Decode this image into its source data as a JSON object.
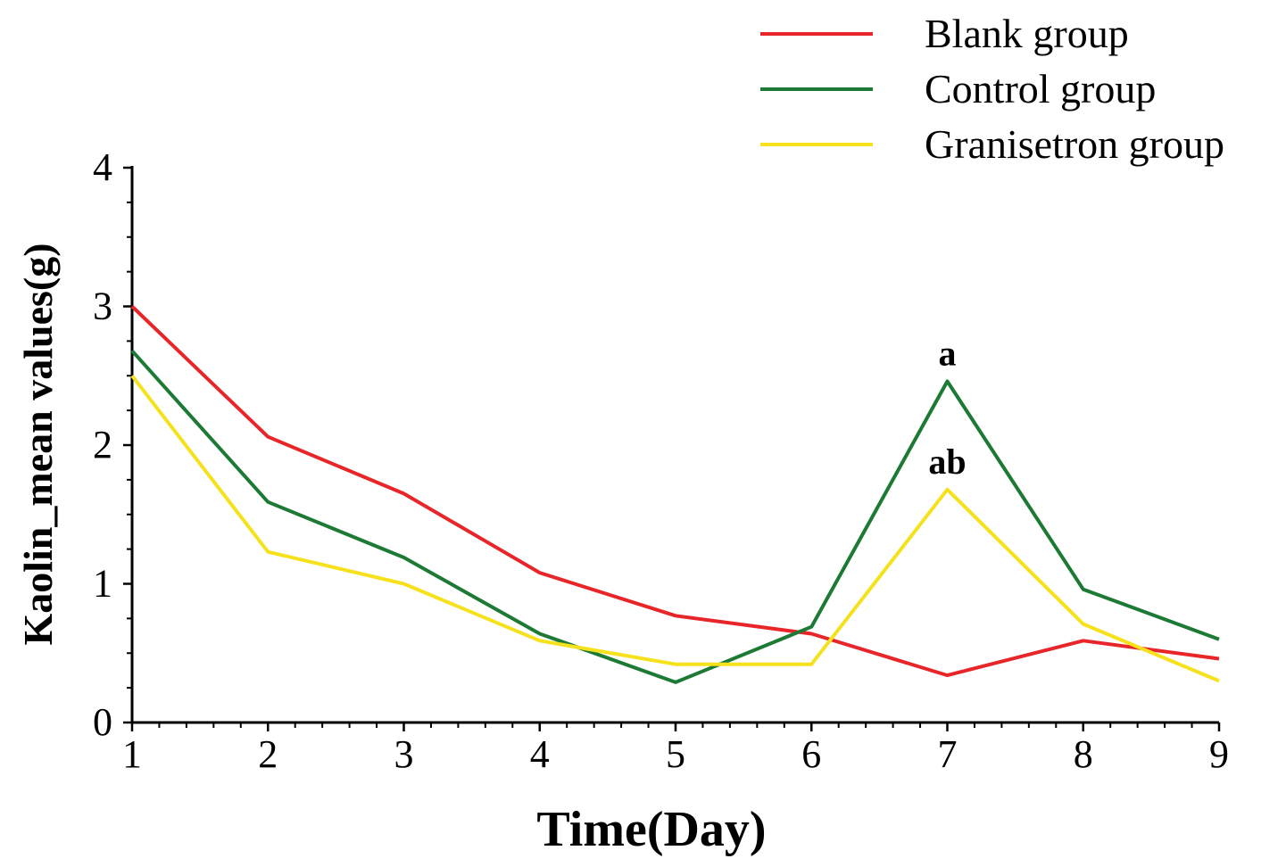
{
  "chart_data": {
    "type": "line",
    "title": "",
    "xlabel": "Time(Day)",
    "ylabel": "Kaolin_mean values(g)",
    "x": [
      1,
      2,
      3,
      4,
      5,
      6,
      7,
      8,
      9
    ],
    "xlim": [
      1,
      9
    ],
    "ylim": [
      0,
      4
    ],
    "xticks": [
      "1",
      "2",
      "3",
      "4",
      "5",
      "6",
      "7",
      "8",
      "9"
    ],
    "yticks": [
      "0",
      "1",
      "2",
      "3",
      "4"
    ],
    "grid": false,
    "legend_position": "top-right",
    "series": [
      {
        "name": "Blank group",
        "color": "#e8262a",
        "values": [
          3.0,
          2.06,
          1.65,
          1.08,
          0.77,
          0.64,
          0.34,
          0.59,
          0.46
        ]
      },
      {
        "name": "Control group",
        "color": "#1c7a35",
        "values": [
          2.68,
          1.59,
          1.19,
          0.64,
          0.29,
          0.69,
          2.46,
          0.96,
          0.6
        ]
      },
      {
        "name": "Granisetron group",
        "color": "#f5e21c",
        "values": [
          2.5,
          1.23,
          1.0,
          0.59,
          0.42,
          0.42,
          1.68,
          0.71,
          0.3
        ]
      }
    ],
    "annotations": [
      {
        "text": "a",
        "series": "Control group",
        "x": 7
      },
      {
        "text": "ab",
        "series": "Granisetron group",
        "x": 7
      }
    ]
  }
}
